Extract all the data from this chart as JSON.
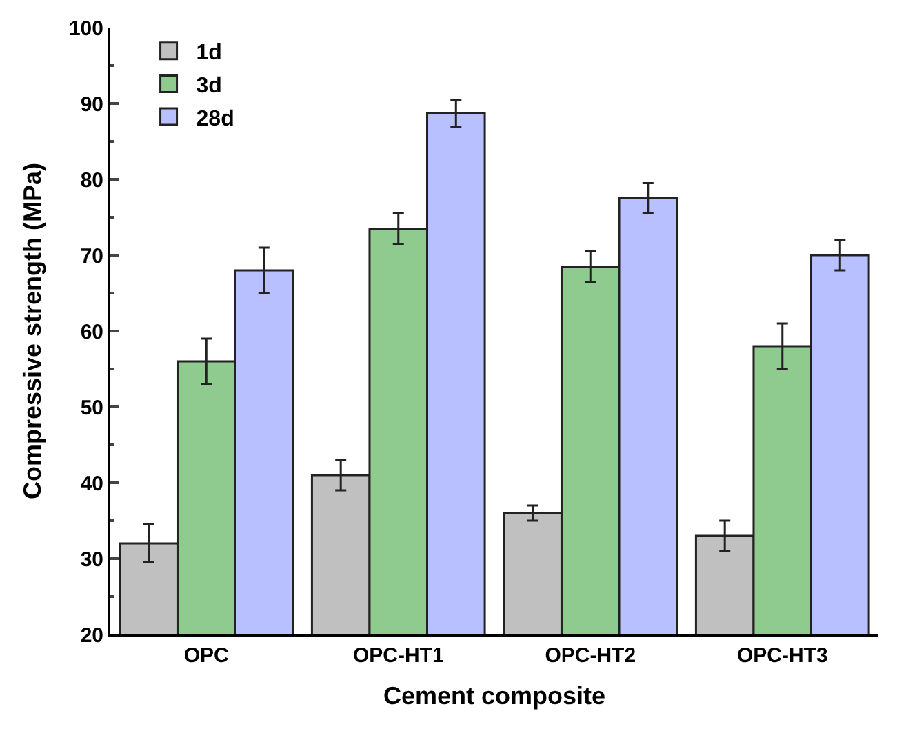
{
  "chart_data": {
    "type": "bar",
    "xlabel": "Cement composite",
    "ylabel": "Compressive strength (MPa)",
    "categories": [
      "OPC",
      "OPC-HT1",
      "OPC-HT2",
      "OPC-HT3"
    ],
    "series": [
      {
        "name": "1d",
        "color": "#c0c0c0",
        "values": [
          32,
          41,
          36,
          33
        ],
        "errors": [
          2.5,
          2,
          1,
          2
        ]
      },
      {
        "name": "3d",
        "color": "#8fcb8f",
        "values": [
          56,
          73.5,
          68.5,
          58
        ],
        "errors": [
          3,
          2,
          2,
          3
        ]
      },
      {
        "name": "28d",
        "color": "#b8c0ff",
        "values": [
          68,
          88.7,
          77.5,
          70
        ],
        "errors": [
          3,
          1.8,
          2,
          2
        ]
      }
    ],
    "ylim": [
      20,
      100
    ],
    "yticks": [
      20,
      30,
      40,
      50,
      60,
      70,
      80,
      90,
      100
    ],
    "legend": "top left"
  }
}
